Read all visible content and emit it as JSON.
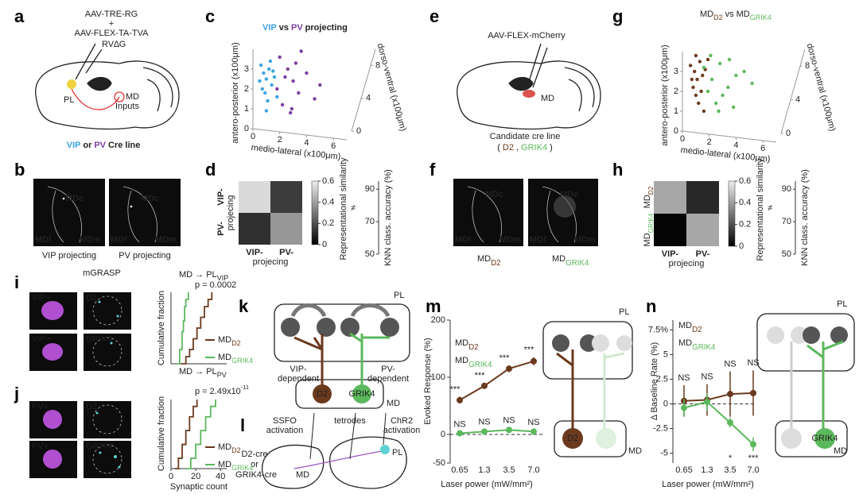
{
  "panels": {
    "a": {
      "letter": "a",
      "v1": "AAV-TRE-RG",
      "plus": "+",
      "v2": "AAV-FLEX-TA-TVA",
      "v3": "RV∆G",
      "pl": "PL",
      "md": "MD",
      "inputs": "Inputs",
      "cre": [
        "VIP",
        "or",
        "PV",
        "Cre line"
      ]
    },
    "b": {
      "letter": "b",
      "img": [
        {
          "mdc": "MDc",
          "mdl": "MDl",
          "mdm": "MDm",
          "caption": "VIP projecting"
        },
        {
          "mdc": "MDc",
          "mdl": "MDl",
          "mdm": "MDm",
          "caption": "PV projecting"
        }
      ]
    },
    "c": {
      "letter": "c"
    },
    "d": {
      "letter": "d"
    },
    "e": {
      "letter": "e",
      "vector": "AAV-FLEX-mCherry",
      "md": "MD",
      "caption": "Candidate cre line",
      "lines": [
        "(",
        "D2",
        ",",
        "GRIK4",
        ")"
      ]
    },
    "f": {
      "letter": "f",
      "img": [
        {
          "mdc": "MDc",
          "mdl": "MDl",
          "mdm": "MDm",
          "main": "MD",
          "sub": "D2"
        },
        {
          "mdc": "MDc",
          "mdl": "MDl",
          "mdm": "MDm",
          "main": "MD",
          "sub": "GRIK4"
        }
      ]
    },
    "g": {
      "letter": "g"
    },
    "h": {
      "letter": "h"
    },
    "i": {
      "letter": "i",
      "header": "mGRASP",
      "rows": [
        {
          "cell": "VIP+",
          "stain": "D2"
        },
        {
          "cell": "VIP+",
          "stain": "GRIK4"
        }
      ]
    },
    "j": {
      "letter": "j",
      "rows": [
        {
          "cell": "PV+",
          "stain": "D2"
        },
        {
          "cell": "PV+",
          "stain": "GRIK4"
        }
      ]
    },
    "k": {
      "letter": "k",
      "pl": "PL",
      "left": [
        "VIP-",
        "dependent"
      ],
      "right": [
        "PV-",
        "dependent"
      ],
      "d2": "D2",
      "grik4": "GRIK4",
      "md": "MD"
    },
    "l": {
      "letter": "l",
      "left": [
        "SSFO",
        "activation"
      ],
      "middle": "tetrodes",
      "right": [
        "ChR2",
        "activation"
      ],
      "cre": [
        "D2-cre",
        "or",
        "GRIK4-cre"
      ],
      "md": "MD",
      "pl": "PL"
    },
    "m": {
      "letter": "m",
      "inset": {
        "pl": "PL",
        "md": "MD",
        "d2": "D2"
      }
    },
    "n": {
      "letter": "n",
      "inset": {
        "pl": "PL",
        "md": "MD",
        "grik4": "GRIK4"
      }
    }
  },
  "chart_data": [
    {
      "type": "scatter",
      "title_parts": [
        "VIP",
        "vs",
        "PV",
        "projecting"
      ],
      "ylabel": "antero-posterior (x100μm)",
      "xlabel": "medio-lateral (x100μm)",
      "zlabel": "dorso-ventral (x100μm)",
      "xlim": [
        0,
        7
      ],
      "xticks": [
        0,
        2,
        4,
        6
      ],
      "ylim": [
        0,
        4
      ],
      "yticks": [
        0,
        1,
        2,
        3
      ],
      "zlim": [
        0,
        10
      ],
      "zticks": [
        0,
        4,
        8
      ],
      "series": [
        {
          "color": "#3ba3e0",
          "x": [
            0.6,
            0.8,
            1.0,
            1.2,
            0.9,
            1.4,
            1.1,
            0.7,
            1.6,
            1.3,
            0.5,
            1.8,
            1.0,
            1.5
          ],
          "values": [
            3.2,
            2.8,
            2.5,
            3.0,
            1.8,
            2.2,
            1.4,
            2.0,
            2.6,
            3.4,
            2.4,
            1.6,
            0.9,
            2.9
          ]
        },
        {
          "color": "#7b3fa3",
          "x": [
            2.0,
            2.6,
            3.0,
            3.4,
            2.2,
            4.0,
            2.8,
            3.6,
            1.8,
            4.6,
            3.2,
            2.4,
            5.0,
            2.9
          ],
          "values": [
            3.6,
            3.0,
            2.4,
            1.8,
            1.2,
            2.8,
            0.8,
            3.9,
            2.0,
            1.5,
            3.3,
            2.6,
            2.2,
            1.0
          ]
        }
      ]
    },
    {
      "type": "heatmap",
      "row_labels": [
        "VIP-",
        "PV-"
      ],
      "row_colors": [
        "#3ba3e0",
        "#7b3fa3"
      ],
      "row_title": "projecing",
      "col_labels": [
        "VIP-",
        "PV-"
      ],
      "col_colors": [
        "#3ba3e0",
        "#7b3fa3"
      ],
      "col_title": "projecing",
      "values": [
        [
          0.55,
          0.15
        ],
        [
          0.12,
          0.38
        ]
      ],
      "zlim": [
        0,
        0.6
      ],
      "zticks": [
        0.6,
        0.4,
        0.2,
        0
      ],
      "zlabel": "Representational similarity",
      "annotation": "≠",
      "y2lim": [
        50,
        95
      ],
      "y2ticks": [
        90,
        70,
        50
      ],
      "y2label": "KNN class. accuracy (%)"
    },
    {
      "type": "scatter",
      "title_parts": [
        "MD",
        "D2",
        "vs",
        "MD",
        "GRIK4"
      ],
      "ylabel": "antero-posterior (x100μm)",
      "xlabel": "medio-lateral (x100μm)",
      "zlabel": "dorso-ventral (x100μm)",
      "xlim": [
        0,
        7
      ],
      "xticks": [
        0,
        2,
        4,
        6
      ],
      "ylim": [
        0,
        4
      ],
      "yticks": [
        0,
        1,
        2,
        3
      ],
      "zlim": [
        0,
        10
      ],
      "zticks": [
        0,
        4,
        8
      ],
      "series": [
        {
          "color": "#6b3a1e",
          "x": [
            0.6,
            0.9,
            1.1,
            1.3,
            0.8,
            1.5,
            1.0,
            1.7,
            1.2,
            0.7,
            1.4,
            1.9,
            1.0,
            1.6
          ],
          "values": [
            3.3,
            3.0,
            2.6,
            3.5,
            2.2,
            2.8,
            1.8,
            3.1,
            1.4,
            2.6,
            2.0,
            3.6,
            3.8,
            1.0
          ]
        },
        {
          "color": "#5cb85c",
          "x": [
            1.6,
            2.2,
            2.8,
            3.4,
            4.0,
            2.5,
            3.0,
            4.6,
            1.9,
            3.8,
            5.2,
            2.1,
            2.7,
            3.5
          ],
          "values": [
            3.2,
            2.6,
            3.4,
            2.2,
            2.8,
            1.4,
            1.8,
            3.0,
            2.0,
            1.2,
            2.4,
            3.8,
            1.0,
            3.6
          ]
        }
      ]
    },
    {
      "type": "heatmap",
      "row_labels": [
        {
          "main": "MD",
          "sub": "D2"
        },
        {
          "main": "MD",
          "sub": "GRIK4"
        }
      ],
      "row_colors": [
        "#6b3a1e",
        "#5cb85c"
      ],
      "col_labels": [
        "VIP-",
        "PV-"
      ],
      "col_colors": [
        "#3ba3e0",
        "#7b3fa3"
      ],
      "col_title": "projecing",
      "values": [
        [
          0.42,
          0.1
        ],
        [
          0.01,
          0.42
        ]
      ],
      "zlim": [
        0,
        0.6
      ],
      "zticks": [
        0.6,
        0.4,
        0.2,
        0
      ],
      "zlabel": "Representational similarity",
      "annotation": "≠",
      "y2lim": [
        50,
        95
      ],
      "y2ticks": [
        90,
        70,
        50
      ],
      "y2label": "KNN class. accuracy (%)"
    },
    {
      "type": "step",
      "title": "MD → PL",
      "title_sub": "VIP",
      "annotation": "p = 0.0002",
      "ylabel": "Cumulative fraction",
      "xlim": [
        0,
        45
      ],
      "ylim": [
        0,
        1
      ],
      "series": [
        {
          "name": "MD",
          "name_sub": "D2",
          "color": "#6b3a1e",
          "x": [
            8,
            12,
            15,
            18,
            21,
            24,
            27,
            30,
            33
          ],
          "values": [
            0,
            0.1,
            0.2,
            0.35,
            0.5,
            0.65,
            0.8,
            0.9,
            1
          ]
        },
        {
          "name": "MD",
          "name_sub": "GRIK4",
          "color": "#5cb85c",
          "x": [
            5,
            7,
            9,
            10,
            11,
            12,
            14
          ],
          "values": [
            0,
            0.2,
            0.45,
            0.6,
            0.8,
            0.9,
            1
          ]
        }
      ]
    },
    {
      "type": "step",
      "title": "MD → PL",
      "title_sub": "PV",
      "annotation": "p = 2.49x10",
      "annotation_sup": "-11",
      "ylabel": "Cumulative fraction",
      "xlabel": "Synaptic count",
      "xlim": [
        0,
        45
      ],
      "xticks": [
        0,
        20,
        40
      ],
      "ylim": [
        0,
        1
      ],
      "series": [
        {
          "name": "MD",
          "name_sub": "D2",
          "color": "#6b3a1e",
          "x": [
            3,
            6,
            9,
            12,
            15,
            18,
            21
          ],
          "values": [
            0,
            0.15,
            0.35,
            0.55,
            0.75,
            0.9,
            1
          ]
        },
        {
          "name": "MD",
          "name_sub": "GRIK4",
          "color": "#5cb85c",
          "x": [
            12,
            16,
            20,
            24,
            28,
            32,
            36
          ],
          "values": [
            0,
            0.15,
            0.35,
            0.55,
            0.75,
            0.9,
            1
          ]
        }
      ]
    },
    {
      "type": "line",
      "ylabel": "Evoked Response (%)",
      "xlabel": "Laser power (mW/mm²)",
      "categories": [
        "0.65",
        "1.3",
        "3.5",
        "7.0"
      ],
      "ylim": [
        -50,
        200
      ],
      "yticks": [
        200,
        100,
        0,
        -50
      ],
      "series": [
        {
          "name": "MD",
          "name_sub": "D2",
          "color": "#6b3a1e",
          "values": [
            60,
            85,
            115,
            128
          ],
          "errors": [
            6,
            5,
            6,
            7
          ],
          "sig": [
            "***",
            "***",
            "***",
            "***"
          ]
        },
        {
          "name": "MD",
          "name_sub": "GRIK4",
          "color": "#5cb85c",
          "values": [
            2,
            5,
            8,
            5
          ],
          "errors": [
            3,
            4,
            4,
            3
          ],
          "sig": [
            "NS",
            "NS",
            "NS",
            "NS"
          ]
        }
      ]
    },
    {
      "type": "line",
      "ylabel": "Δ Baseline Rate (%)",
      "xlabel": "Laser power (mW/mm²)",
      "categories": [
        "0.65",
        "1.3",
        "3.5",
        "7.0"
      ],
      "ylim": [
        -6,
        8.5
      ],
      "yticks": [
        {
          "value": 7.5,
          "label": "7.5%"
        },
        5,
        2.5,
        0,
        -2.5,
        -5
      ],
      "series": [
        {
          "name": "MD",
          "name_sub": "D2",
          "color": "#6b3a1e",
          "values": [
            0.3,
            0.4,
            1.0,
            1.1
          ],
          "errors": [
            1.6,
            1.6,
            2.3,
            2.3
          ],
          "sig": [
            "NS",
            "NS",
            "NS",
            "NS"
          ]
        },
        {
          "name": "MD",
          "name_sub": "GRIK4",
          "color": "#5cb85c",
          "values": [
            -0.4,
            0.2,
            -1.9,
            -4.1
          ],
          "errors": [
            0.9,
            0.9,
            0.5,
            0.7
          ],
          "sig": [
            null,
            null,
            "*",
            "***"
          ]
        }
      ]
    }
  ]
}
